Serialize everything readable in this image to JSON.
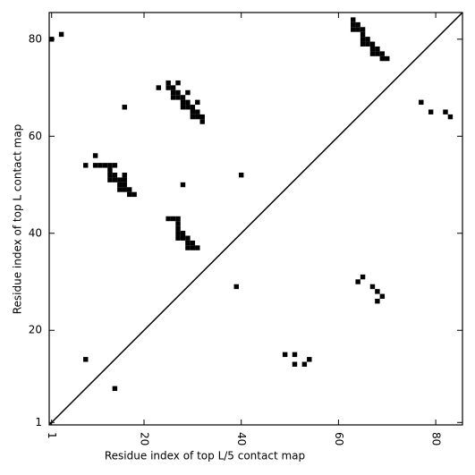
{
  "chart_data": {
    "type": "scatter",
    "marker": "square",
    "color": "#000000",
    "xlabel": "Residue index of top L/5 contact map",
    "ylabel": "Residue index of top L contact map",
    "xlim": [
      0.5,
      85.5
    ],
    "ylim": [
      0.5,
      85.5
    ],
    "xticks": [
      1,
      20,
      40,
      60,
      80
    ],
    "yticks": [
      1,
      20,
      40,
      60,
      80
    ],
    "x": [
      1,
      3,
      16,
      8,
      10,
      10,
      11,
      12,
      13,
      14,
      13,
      13,
      14,
      16,
      13,
      14,
      15,
      16,
      15,
      16,
      15,
      16,
      17,
      17,
      18,
      28,
      40,
      23,
      25,
      27,
      25,
      26,
      26,
      27,
      29,
      26,
      27,
      28,
      28,
      29,
      31,
      28,
      29,
      30,
      30,
      31,
      30,
      31,
      32,
      32,
      25,
      26,
      27,
      27,
      27,
      27,
      28,
      27,
      28,
      29,
      29,
      30,
      29,
      30,
      31,
      39,
      8,
      14,
      63,
      63,
      64,
      63,
      64,
      65,
      65,
      65,
      66,
      65,
      66,
      67,
      67,
      68,
      67,
      68,
      69,
      69,
      70,
      77,
      79,
      82,
      83,
      64,
      65,
      67,
      68,
      69,
      68,
      49,
      51,
      51,
      53,
      54
    ],
    "values": [
      80,
      81,
      66,
      54,
      56,
      54,
      54,
      54,
      54,
      54,
      53,
      52,
      52,
      52,
      51,
      51,
      51,
      51,
      50,
      50,
      49,
      49,
      49,
      48,
      48,
      50,
      52,
      70,
      71,
      71,
      70,
      70,
      69,
      69,
      69,
      68,
      68,
      68,
      67,
      67,
      67,
      66,
      66,
      66,
      65,
      65,
      64,
      64,
      64,
      63,
      43,
      43,
      43,
      42,
      41,
      40,
      40,
      39,
      39,
      39,
      38,
      38,
      37,
      37,
      37,
      29,
      14,
      8,
      84,
      83,
      83,
      82,
      82,
      82,
      81,
      80,
      80,
      79,
      79,
      79,
      78,
      78,
      77,
      77,
      77,
      76,
      76,
      67,
      65,
      65,
      64,
      30,
      31,
      29,
      28,
      27,
      26,
      15,
      15,
      13,
      13,
      14
    ]
  }
}
